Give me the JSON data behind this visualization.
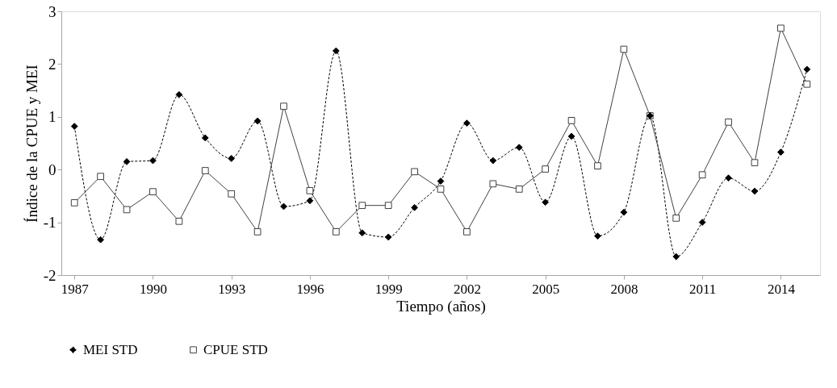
{
  "chart_data": {
    "type": "line",
    "xlabel": "Tiempo (años)",
    "ylabel": "Índice de la CPUE y MEI",
    "x": [
      1987,
      1988,
      1989,
      1990,
      1991,
      1992,
      1993,
      1994,
      1995,
      1996,
      1997,
      1998,
      1999,
      2000,
      2001,
      2002,
      2003,
      2004,
      2005,
      2006,
      2007,
      2008,
      2009,
      2010,
      2011,
      2012,
      2013,
      2014,
      2015
    ],
    "series": [
      {
        "name": "MEI STD",
        "color": "#000000",
        "marker": "diamond",
        "line_style": "dashed",
        "values": [
          0.82,
          -1.33,
          0.15,
          0.17,
          1.42,
          0.6,
          0.21,
          0.92,
          -0.7,
          -0.59,
          2.25,
          -1.2,
          -1.28,
          -0.72,
          -0.22,
          0.88,
          0.17,
          0.42,
          -0.62,
          0.63,
          -1.26,
          -0.81,
          1.02,
          -1.65,
          -1.0,
          -0.16,
          -0.41,
          0.33,
          1.9
        ]
      },
      {
        "name": "CPUE STD",
        "color": "#404040",
        "marker": "square",
        "line_style": "solid",
        "values": [
          -0.63,
          -0.13,
          -0.76,
          -0.42,
          -0.98,
          -0.02,
          -0.46,
          -1.18,
          1.2,
          -0.4,
          -1.18,
          -0.68,
          -0.68,
          -0.04,
          -0.37,
          -1.18,
          -0.27,
          -0.37,
          0.01,
          0.93,
          0.07,
          2.28,
          1.02,
          -0.92,
          -0.1,
          0.9,
          0.13,
          2.68,
          1.62
        ]
      }
    ],
    "xlim": [
      1986.5,
      2015.5
    ],
    "xticks": [
      1987,
      1990,
      1993,
      1996,
      1999,
      2002,
      2005,
      2008,
      2011,
      2014
    ],
    "ylim": [
      -2,
      3
    ],
    "yticks": [
      -2,
      -1,
      0,
      1,
      2,
      3
    ],
    "grid": false,
    "legend": "bottom"
  }
}
